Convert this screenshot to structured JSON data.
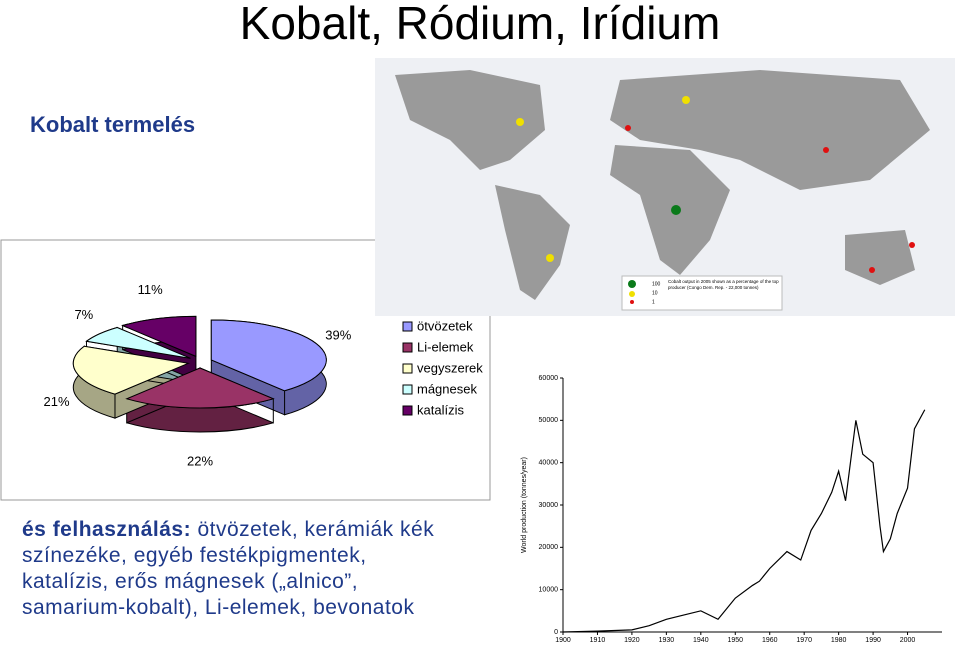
{
  "title": "Kobalt, Ródium, Irídium",
  "subtitle": "Kobalt termelés",
  "body_text": {
    "bold": "és felhasználás:",
    "text": "ötvözetek, kerámiák kék színezéke, egyéb festékpigmentek, katalízis, erős mágnesek („alnico”, samarium-kobalt), Li-elemek, bevonatok"
  },
  "map": {
    "legend_sizes": [
      "100",
      "10",
      "1"
    ],
    "caption": "Cobalt output in 2005 shown as a percentage of the top producer (Congo Dem. Rep. - 22,000 tonnes)"
  },
  "chart_data": [
    {
      "type": "pie",
      "categories": [
        "ötvözetek",
        "Li-elemek",
        "vegyszerek",
        "mágnesek",
        "katalízis"
      ],
      "values": [
        39,
        22,
        21,
        7,
        11
      ],
      "value_labels": [
        "39%",
        "22%",
        "21%",
        "7%",
        "11%"
      ],
      "colors": [
        "#9999ff",
        "#993366",
        "#ffffcc",
        "#ccffff",
        "#660066"
      ]
    },
    {
      "type": "line",
      "ylabel": "World production (tonnes/year)",
      "x": [
        1900,
        1910,
        1920,
        1925,
        1930,
        1935,
        1940,
        1945,
        1950,
        1955,
        1957,
        1960,
        1965,
        1969,
        1972,
        1975,
        1978,
        1980,
        1982,
        1985,
        1987,
        1990,
        1992,
        1993,
        1995,
        1997,
        2000,
        2002,
        2005
      ],
      "values": [
        0,
        200,
        500,
        1500,
        3000,
        4000,
        5000,
        3000,
        8000,
        11000,
        12000,
        15000,
        19000,
        17000,
        24000,
        28000,
        33000,
        38000,
        31000,
        50000,
        42000,
        40000,
        25000,
        19000,
        22000,
        28000,
        34000,
        48000,
        52500
      ],
      "color": "#000000",
      "xlim": [
        1900,
        2010
      ],
      "ylim": [
        0,
        60000
      ],
      "xticks": [
        1900,
        1910,
        1920,
        1930,
        1940,
        1950,
        1960,
        1970,
        1980,
        1990,
        2000
      ],
      "yticks": [
        0,
        10000,
        20000,
        30000,
        40000,
        50000,
        60000
      ]
    }
  ]
}
